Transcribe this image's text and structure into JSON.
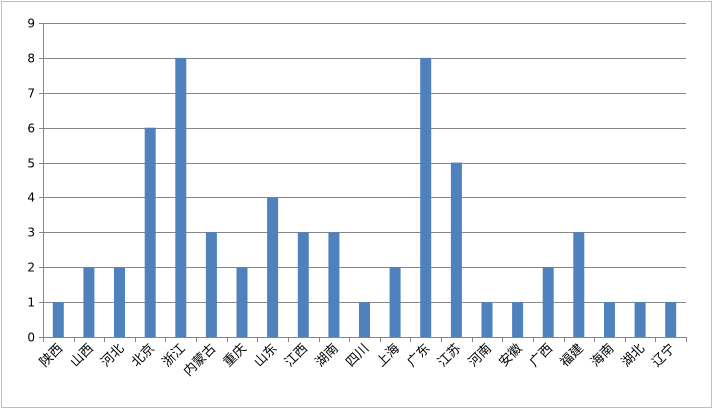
{
  "chart_data": {
    "type": "bar",
    "categories": [
      "陕西",
      "山西",
      "河北",
      "北京",
      "浙江",
      "内蒙古",
      "重庆",
      "山东",
      "江西",
      "湖南",
      "四川",
      "上海",
      "广东",
      "江苏",
      "河南",
      "安徽",
      "广西",
      "福建",
      "海南",
      "湖北",
      "辽宁"
    ],
    "values": [
      1,
      2,
      2,
      6,
      8,
      3,
      2,
      4,
      3,
      3,
      1,
      2,
      8,
      5,
      1,
      1,
      2,
      3,
      1,
      1,
      1
    ],
    "ylim": [
      0,
      9
    ],
    "yticks": [
      0,
      1,
      2,
      3,
      4,
      5,
      6,
      7,
      8,
      9
    ],
    "grid": true,
    "legend": "none",
    "bar_color": "#4f81bd",
    "grid_color": "#868686",
    "border_color": "#bfbfbf"
  }
}
